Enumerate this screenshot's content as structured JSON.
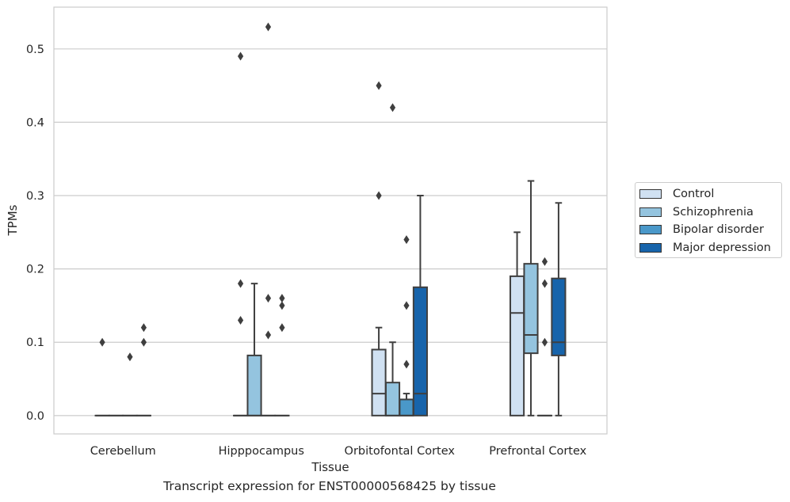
{
  "chart_data": {
    "type": "box",
    "xlabel": "Tissue",
    "ylabel": "TPMs",
    "ylim": [
      -0.025,
      0.557
    ],
    "yticks": [
      0.0,
      0.1,
      0.2,
      0.3,
      0.4,
      0.5
    ],
    "ytick_labels": [
      "0.0",
      "0.1",
      "0.2",
      "0.3",
      "0.4",
      "0.5"
    ],
    "grid": "horizontal",
    "legend_placement": "right, outside plot",
    "caption": "Transcript expression for ENST00000568425 by tissue",
    "categories": [
      "Cerebellum",
      "Hipppocampus",
      "Orbitofontal Cortex",
      "Prefrontal Cortex"
    ],
    "series": [
      {
        "name": "Control",
        "color": "#d0e1f2",
        "boxes": [
          {
            "q1": 0.0,
            "median": 0.0,
            "q3": 0.0,
            "whislo": 0.0,
            "whishi": 0.0,
            "fliers": [
              0.1
            ]
          },
          {
            "q1": 0.0,
            "median": 0.0,
            "q3": 0.0,
            "whislo": 0.0,
            "whishi": 0.0,
            "fliers": [
              0.49,
              0.18,
              0.13
            ]
          },
          {
            "q1": 0.0,
            "median": 0.03,
            "q3": 0.09,
            "whislo": 0.0,
            "whishi": 0.12,
            "fliers": [
              0.45,
              0.3
            ]
          },
          {
            "q1": 0.0,
            "median": 0.14,
            "q3": 0.19,
            "whislo": 0.0,
            "whishi": 0.25,
            "fliers": []
          }
        ]
      },
      {
        "name": "Schizophrenia",
        "color": "#94c4df",
        "boxes": [
          {
            "q1": 0.0,
            "median": 0.0,
            "q3": 0.0,
            "whislo": 0.0,
            "whishi": 0.0,
            "fliers": []
          },
          {
            "q1": 0.0,
            "median": 0.0,
            "q3": 0.082,
            "whislo": 0.0,
            "whishi": 0.18,
            "fliers": []
          },
          {
            "q1": 0.0,
            "median": 0.0,
            "q3": 0.045,
            "whislo": 0.0,
            "whishi": 0.1,
            "fliers": [
              0.42
            ]
          },
          {
            "q1": 0.085,
            "median": 0.11,
            "q3": 0.207,
            "whislo": 0.0,
            "whishi": 0.32,
            "fliers": []
          }
        ]
      },
      {
        "name": "Bipolar disorder",
        "color": "#4a98c9",
        "boxes": [
          {
            "q1": 0.0,
            "median": 0.0,
            "q3": 0.0,
            "whislo": 0.0,
            "whishi": 0.0,
            "fliers": [
              0.08
            ]
          },
          {
            "q1": 0.0,
            "median": 0.0,
            "q3": 0.0,
            "whislo": 0.0,
            "whishi": 0.0,
            "fliers": [
              0.53,
              0.16,
              0.11
            ]
          },
          {
            "q1": 0.0,
            "median": 0.0,
            "q3": 0.022,
            "whislo": 0.0,
            "whishi": 0.03,
            "fliers": [
              0.24,
              0.15,
              0.07
            ]
          },
          {
            "q1": 0.0,
            "median": 0.0,
            "q3": 0.0,
            "whislo": 0.0,
            "whishi": 0.0,
            "fliers": [
              0.21,
              0.18,
              0.1
            ]
          }
        ]
      },
      {
        "name": "Major depression",
        "color": "#1764ab",
        "boxes": [
          {
            "q1": 0.0,
            "median": 0.0,
            "q3": 0.0,
            "whislo": 0.0,
            "whishi": 0.0,
            "fliers": [
              0.12,
              0.1
            ]
          },
          {
            "q1": 0.0,
            "median": 0.0,
            "q3": 0.0,
            "whislo": 0.0,
            "whishi": 0.0,
            "fliers": [
              0.16,
              0.15,
              0.12
            ]
          },
          {
            "q1": 0.0,
            "median": 0.03,
            "q3": 0.175,
            "whislo": 0.0,
            "whishi": 0.3,
            "fliers": []
          },
          {
            "q1": 0.082,
            "median": 0.1,
            "q3": 0.187,
            "whislo": 0.0,
            "whishi": 0.29,
            "fliers": []
          }
        ]
      }
    ]
  }
}
